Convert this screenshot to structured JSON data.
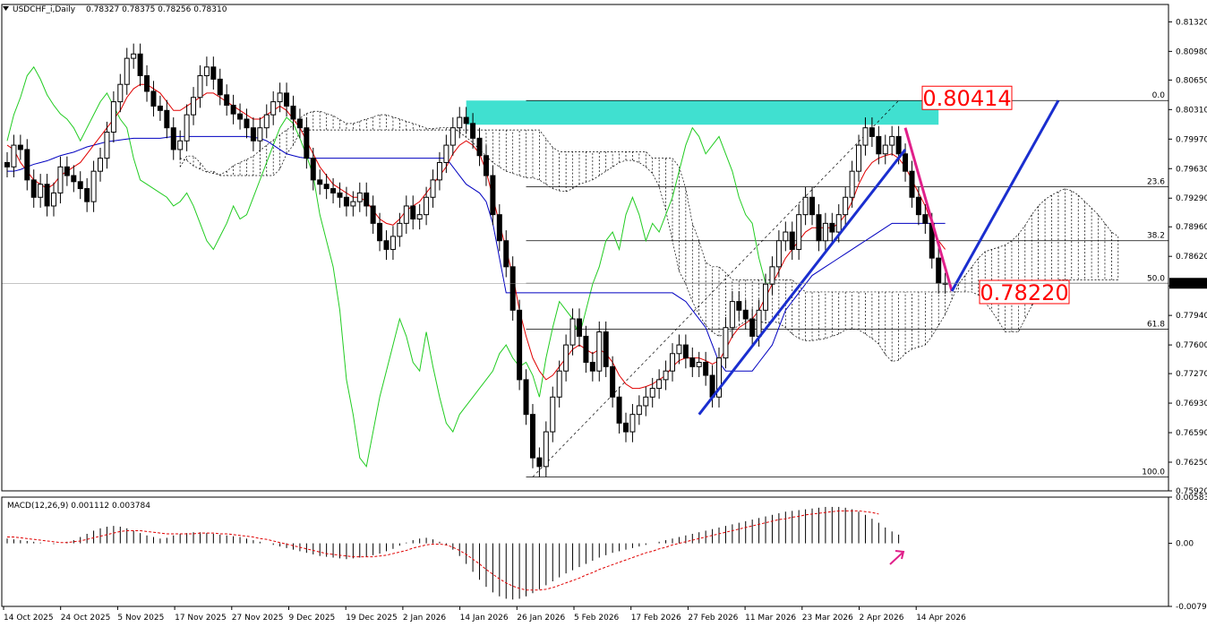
{
  "chart_data": [
    {
      "type": "candlestick",
      "title": "USDCHF_i,Daily",
      "ohlc_header": "0.78327 0.78375 0.78256 0.78310",
      "last_price": "0.78310",
      "ylim": [
        0.7592,
        0.8152
      ],
      "y_ticks": [
        "0.81320",
        "0.80980",
        "0.80650",
        "0.80310",
        "0.79970",
        "0.79630",
        "0.79290",
        "0.78960",
        "0.78620",
        "0.78280",
        "0.77940",
        "0.77600",
        "0.77270",
        "0.76930",
        "0.76590",
        "0.76250",
        "0.75920"
      ],
      "x_ticks": [
        "14 Oct 2025",
        "24 Oct 2025",
        "5 Nov 2025",
        "17 Nov 2025",
        "27 Nov 2025",
        "9 Dec 2025",
        "19 Dec 2025",
        "2 Jan 2026",
        "14 Jan 2026",
        "26 Jan 2026",
        "5 Feb 2026",
        "17 Feb 2026",
        "27 Feb 2026",
        "11 Mar 2026",
        "23 Mar 2026",
        "2 Apr 2026",
        "14 Apr 2026"
      ],
      "close": [
        0.7965,
        0.799,
        0.7985,
        0.795,
        0.793,
        0.7945,
        0.792,
        0.7935,
        0.7965,
        0.7955,
        0.7948,
        0.794,
        0.7925,
        0.796,
        0.7975,
        0.8005,
        0.804,
        0.806,
        0.809,
        0.8095,
        0.807,
        0.8052,
        0.8035,
        0.803,
        0.801,
        0.7985,
        0.7995,
        0.8025,
        0.8045,
        0.807,
        0.808,
        0.8066,
        0.8048,
        0.8036,
        0.8026,
        0.802,
        0.801,
        0.7995,
        0.801,
        0.8025,
        0.804,
        0.805,
        0.8035,
        0.802,
        0.801,
        0.7975,
        0.795,
        0.7945,
        0.794,
        0.7935,
        0.793,
        0.792,
        0.7925,
        0.7935,
        0.792,
        0.79,
        0.788,
        0.787,
        0.7885,
        0.79,
        0.792,
        0.7905,
        0.791,
        0.793,
        0.795,
        0.797,
        0.799,
        0.801,
        0.8022,
        0.8015,
        0.7998,
        0.7978,
        0.7955,
        0.791,
        0.788,
        0.785,
        0.78,
        0.772,
        0.768,
        0.763,
        0.762,
        0.766,
        0.77,
        0.773,
        0.776,
        0.779,
        0.777,
        0.774,
        0.773,
        0.7775,
        0.7735,
        0.77,
        0.767,
        0.766,
        0.768,
        0.769,
        0.77,
        0.771,
        0.772,
        0.773,
        0.775,
        0.776,
        0.7745,
        0.7735,
        0.774,
        0.7725,
        0.77,
        0.7745,
        0.778,
        0.781,
        0.78,
        0.779,
        0.777,
        0.78,
        0.783,
        0.785,
        0.788,
        0.789,
        0.787,
        0.791,
        0.793,
        0.791,
        0.788,
        0.79,
        0.789,
        0.791,
        0.793,
        0.796,
        0.799,
        0.801,
        0.8,
        0.798,
        0.799,
        0.8,
        0.798,
        0.796,
        0.793,
        0.791,
        0.79,
        0.786,
        0.7831,
        0.7831
      ],
      "ichimoku": {
        "tenkan": [
          0.799,
          0.7985,
          0.797,
          0.796,
          0.795,
          0.7945,
          0.794,
          0.7945,
          0.7955,
          0.796,
          0.7965,
          0.797,
          0.798,
          0.799,
          0.8,
          0.801,
          0.802,
          0.803,
          0.8045,
          0.8055,
          0.806,
          0.806,
          0.8055,
          0.805,
          0.804,
          0.803,
          0.803,
          0.8035,
          0.804,
          0.8045,
          0.805,
          0.805,
          0.8045,
          0.804,
          0.8035,
          0.803,
          0.8025,
          0.802,
          0.802,
          0.8025,
          0.803,
          0.8035,
          0.803,
          0.802,
          0.801,
          0.7995,
          0.798,
          0.7965,
          0.7955,
          0.7945,
          0.794,
          0.7935,
          0.793,
          0.793,
          0.7925,
          0.7915,
          0.7905,
          0.79,
          0.7898,
          0.7905,
          0.7915,
          0.792,
          0.7925,
          0.7935,
          0.7945,
          0.7955,
          0.7965,
          0.798,
          0.799,
          0.7995,
          0.799,
          0.798,
          0.796,
          0.793,
          0.79,
          0.787,
          0.784,
          0.78,
          0.777,
          0.7745,
          0.773,
          0.772,
          0.7725,
          0.7735,
          0.7745,
          0.7755,
          0.776,
          0.7755,
          0.775,
          0.7755,
          0.775,
          0.774,
          0.7725,
          0.7715,
          0.771,
          0.771,
          0.7712,
          0.7715,
          0.772,
          0.7725,
          0.7735,
          0.7742,
          0.7745,
          0.7745,
          0.7745,
          0.7742,
          0.7738,
          0.7742,
          0.7755,
          0.777,
          0.778,
          0.7785,
          0.779,
          0.78,
          0.7815,
          0.783,
          0.7845,
          0.786,
          0.787,
          0.788,
          0.789,
          0.7895,
          0.7895,
          0.7895,
          0.7895,
          0.79,
          0.791,
          0.7925,
          0.7945,
          0.796,
          0.797,
          0.7975,
          0.7978,
          0.798,
          0.7975,
          0.7965,
          0.795,
          0.7935,
          0.792,
          0.79,
          0.788,
          0.787
        ],
        "kijun": [
          0.796,
          0.796,
          0.7962,
          0.7965,
          0.7968,
          0.797,
          0.7972,
          0.7975,
          0.7978,
          0.798,
          0.7982,
          0.7985,
          0.7988,
          0.799,
          0.7992,
          0.7994,
          0.7995,
          0.7996,
          0.7997,
          0.7998,
          0.7998,
          0.7998,
          0.7998,
          0.7998,
          0.7999,
          0.8,
          0.8,
          0.8,
          0.8,
          0.8,
          0.8,
          0.8,
          0.8,
          0.8,
          0.8,
          0.8,
          0.8,
          0.7999,
          0.7998,
          0.7995,
          0.799,
          0.7985,
          0.798,
          0.7978,
          0.7976,
          0.7975,
          0.7975,
          0.7975,
          0.7975,
          0.7975,
          0.7975,
          0.7975,
          0.7975,
          0.7975,
          0.7975,
          0.7975,
          0.7975,
          0.7975,
          0.7975,
          0.7975,
          0.7975,
          0.7975,
          0.7975,
          0.7975,
          0.7975,
          0.7975,
          0.7975,
          0.7965,
          0.7955,
          0.7945,
          0.794,
          0.7935,
          0.7925,
          0.79,
          0.786,
          0.782,
          0.782,
          0.782,
          0.782,
          0.782,
          0.782,
          0.782,
          0.782,
          0.782,
          0.782,
          0.782,
          0.782,
          0.782,
          0.782,
          0.782,
          0.782,
          0.782,
          0.782,
          0.782,
          0.782,
          0.782,
          0.782,
          0.782,
          0.782,
          0.782,
          0.782,
          0.7815,
          0.781,
          0.78,
          0.779,
          0.778,
          0.776,
          0.774,
          0.773,
          0.773,
          0.773,
          0.773,
          0.773,
          0.774,
          0.775,
          0.776,
          0.778,
          0.78,
          0.781,
          0.782,
          0.783,
          0.784,
          0.7845,
          0.785,
          0.7855,
          0.786,
          0.7865,
          0.787,
          0.7875,
          0.788,
          0.7885,
          0.789,
          0.7895,
          0.79,
          0.79,
          0.79,
          0.79,
          0.79,
          0.79,
          0.79,
          0.79,
          0.79
        ]
      },
      "fibonacci": [
        {
          "level": "0.0",
          "price": 0.80414
        },
        {
          "level": "23.6",
          "price": 0.7942
        },
        {
          "level": "38.2",
          "price": 0.788
        },
        {
          "level": "50.0",
          "price": 0.7831
        },
        {
          "level": "61.8",
          "price": 0.7778
        },
        {
          "level": "100.0",
          "price": 0.7608
        }
      ],
      "annotations": {
        "top_label": "0.80414",
        "bottom_label": "0.78220"
      },
      "colors": {
        "bull": "#000000",
        "bear": "#000000",
        "tenkan": "#e00000",
        "kijun": "#0000c0",
        "chikou": "#22cc22",
        "cloud": "#000000",
        "zone": "#40e0d0",
        "forecast_down": "#e0208a",
        "forecast_up": "#1a2ecf",
        "label_red": "#ff0000"
      }
    },
    {
      "type": "histogram",
      "title": "MACD(12,26,9) 0.001112 0.003784",
      "y_ticks": [
        "0.005838",
        "0.00",
        "-0.007969"
      ],
      "ylim": [
        -0.007969,
        0.005838
      ],
      "macd": [
        0.0006,
        0.0005,
        0.0004,
        0.0003,
        0.0002,
        0.0001,
        0.0,
        -0.0001,
        0.0,
        0.0002,
        0.0004,
        0.0008,
        0.0012,
        0.0016,
        0.0019,
        0.0021,
        0.0022,
        0.0021,
        0.0019,
        0.0016,
        0.0013,
        0.001,
        0.0008,
        0.0006,
        0.0007,
        0.001,
        0.0012,
        0.0013,
        0.0014,
        0.0014,
        0.0013,
        0.0012,
        0.0011,
        0.001,
        0.0009,
        0.0008,
        0.0006,
        0.0004,
        0.0002,
        0.0,
        -0.0002,
        -0.0004,
        -0.0006,
        -0.0008,
        -0.001,
        -0.0012,
        -0.0014,
        -0.0016,
        -0.0017,
        -0.0018,
        -0.0019,
        -0.002,
        -0.0019,
        -0.0018,
        -0.0017,
        -0.0015,
        -0.0013,
        -0.001,
        -0.0007,
        -0.0003,
        0.0001,
        0.0004,
        0.0006,
        0.0007,
        0.0005,
        0.0002,
        -0.0002,
        -0.0008,
        -0.0016,
        -0.0026,
        -0.0036,
        -0.0046,
        -0.0055,
        -0.0062,
        -0.0067,
        -0.007,
        -0.0071,
        -0.007,
        -0.0067,
        -0.0063,
        -0.0058,
        -0.0053,
        -0.0048,
        -0.0043,
        -0.0038,
        -0.0034,
        -0.003,
        -0.0026,
        -0.0022,
        -0.0018,
        -0.0015,
        -0.0012,
        -0.001,
        -0.0008,
        -0.0006,
        -0.0004,
        -0.0002,
        0.0,
        0.0002,
        0.0004,
        0.0006,
        0.0008,
        0.001,
        0.0012,
        0.0014,
        0.0016,
        0.0018,
        0.002,
        0.0022,
        0.0024,
        0.0026,
        0.0028,
        0.003,
        0.0032,
        0.0034,
        0.0036,
        0.0038,
        0.004,
        0.0041,
        0.0042,
        0.0043,
        0.0044,
        0.0045,
        0.0046,
        0.0046,
        0.0046,
        0.0045,
        0.0043,
        0.004,
        0.0036,
        0.0031,
        0.0026,
        0.002,
        0.0015,
        0.0011
      ],
      "signal": [
        0.0008,
        0.0008,
        0.0007,
        0.0006,
        0.0005,
        0.0004,
        0.0003,
        0.0002,
        0.0001,
        0.0001,
        0.0002,
        0.0003,
        0.0005,
        0.0007,
        0.0009,
        0.0011,
        0.0013,
        0.0015,
        0.0016,
        0.0016,
        0.0016,
        0.0015,
        0.0014,
        0.0013,
        0.0012,
        0.0012,
        0.0012,
        0.0012,
        0.0012,
        0.0013,
        0.0013,
        0.0013,
        0.0012,
        0.0012,
        0.0011,
        0.001,
        0.0009,
        0.0008,
        0.0006,
        0.0005,
        0.0003,
        0.0001,
        -0.0001,
        -0.0003,
        -0.0005,
        -0.0007,
        -0.0009,
        -0.0011,
        -0.0013,
        -0.0014,
        -0.0015,
        -0.0016,
        -0.0017,
        -0.0017,
        -0.0017,
        -0.0017,
        -0.0016,
        -0.0015,
        -0.0013,
        -0.0011,
        -0.0009,
        -0.0006,
        -0.0004,
        -0.0002,
        -0.0001,
        -0.0001,
        -0.0002,
        -0.0005,
        -0.0009,
        -0.0014,
        -0.002,
        -0.0026,
        -0.0033,
        -0.0039,
        -0.0045,
        -0.005,
        -0.0054,
        -0.0057,
        -0.0059,
        -0.0059,
        -0.0059,
        -0.0058,
        -0.0056,
        -0.0053,
        -0.005,
        -0.0047,
        -0.0044,
        -0.004,
        -0.0037,
        -0.0033,
        -0.003,
        -0.0027,
        -0.0024,
        -0.0021,
        -0.0018,
        -0.0015,
        -0.0012,
        -0.001,
        -0.0007,
        -0.0005,
        -0.0002,
        0.0,
        0.0002,
        0.0004,
        0.0006,
        0.0008,
        0.001,
        0.0012,
        0.0014,
        0.0016,
        0.0018,
        0.002,
        0.0022,
        0.0024,
        0.0026,
        0.0028,
        0.003,
        0.0031,
        0.0033,
        0.0034,
        0.0036,
        0.0037,
        0.0038,
        0.0039,
        0.004,
        0.0041,
        0.0041,
        0.0041,
        0.0041,
        0.004,
        0.0039,
        0.0037
      ]
    }
  ]
}
